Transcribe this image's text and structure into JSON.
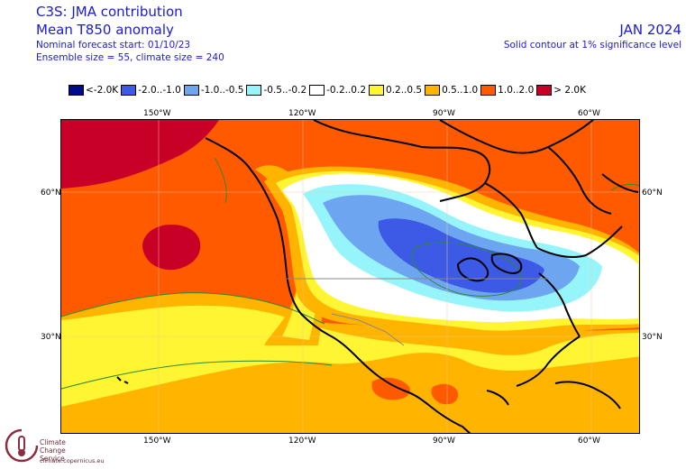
{
  "header": {
    "title": "C3S: JMA contribution",
    "subtitle": "Mean T850 anomaly",
    "forecast_start": "Nominal forecast start: 01/10/23",
    "ensemble": "Ensemble size = 55, climate size = 240",
    "period": "JAN 2024",
    "significance": "Solid contour at 1% significance level"
  },
  "legend": [
    {
      "label": "<-2.0K",
      "color": "#000a8c"
    },
    {
      "label": "-2.0..-1.0",
      "color": "#3c5ae6"
    },
    {
      "label": "-1.0..-0.5",
      "color": "#6ea5f0"
    },
    {
      "label": "-0.5..-0.2",
      "color": "#96f5fa"
    },
    {
      "label": "-0.2..0.2",
      "color": "#ffffff"
    },
    {
      "label": "0.2..0.5",
      "color": "#fff532"
    },
    {
      "label": "0.5..1.0",
      "color": "#ffb400"
    },
    {
      "label": "1.0..2.0",
      "color": "#ff5a00"
    },
    {
      "label": "> 2.0K",
      "color": "#c80028"
    }
  ],
  "axes": {
    "longitudes": [
      "150°W",
      "120°W",
      "90°W",
      "60°W"
    ],
    "latitudes": [
      "60°N",
      "30°N"
    ]
  },
  "logo": {
    "name_line1": "Climate",
    "name_line2": "Change Service",
    "url": "climate.copernicus.eu"
  }
}
